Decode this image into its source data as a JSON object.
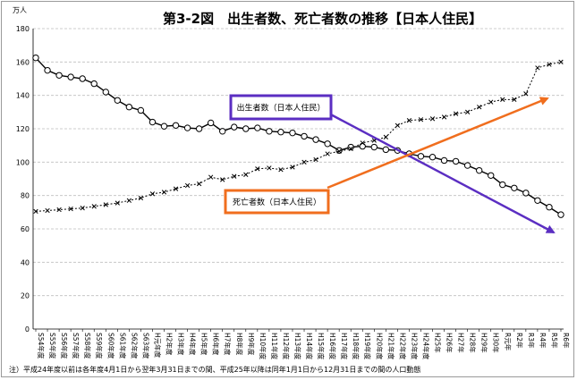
{
  "chart_data": {
    "type": "line",
    "title": "第3-2図　出生者数、死亡者数の推移【日本人住民】",
    "y_unit": "万人",
    "ylim": [
      0,
      180
    ],
    "yticks": [
      0,
      20,
      40,
      60,
      80,
      100,
      120,
      140,
      160,
      180
    ],
    "grid": true,
    "categories": [
      "S54年度",
      "S55年度",
      "S56年度",
      "S57年度",
      "S58年度",
      "S59年度",
      "S60年度",
      "S61年度",
      "S62年度",
      "S63年度",
      "H元年度",
      "H2年度",
      "H3年度",
      "H4年度",
      "H5年度",
      "H6年度",
      "H7年度",
      "H8年度",
      "H9年度",
      "H10年度",
      "H11年度",
      "H12年度",
      "H13年度",
      "H14年度",
      "H15年度",
      "H16年度",
      "H17年度",
      "H18年度",
      "H19年度",
      "H20年度",
      "H21年度",
      "H22年度",
      "H23年度",
      "H24年度",
      "H25年",
      "H26年",
      "H27年",
      "H28年",
      "H29年",
      "H30年",
      "R元年",
      "R2年",
      "R3年",
      "R4年",
      "R5年",
      "R6年"
    ],
    "series": [
      {
        "name": "出生者数（日本人住民）",
        "marker": "circle",
        "values": [
          162.5,
          155.0,
          152.0,
          151.0,
          150.0,
          147.0,
          142.0,
          137.0,
          133.0,
          131.0,
          124.0,
          121.5,
          122.0,
          120.5,
          120.0,
          123.5,
          118.5,
          121.0,
          120.0,
          120.5,
          118.5,
          118.0,
          117.5,
          115.5,
          113.5,
          111.0,
          107.0,
          109.0,
          109.5,
          109.0,
          107.5,
          107.0,
          105.0,
          103.5,
          103.0,
          101.0,
          100.5,
          98.0,
          95.0,
          92.0,
          86.5,
          84.5,
          81.5,
          77.0,
          73.0,
          68.5
        ]
      },
      {
        "name": "死亡者数（日本人住民）",
        "marker": "cross",
        "values": [
          70.5,
          71.0,
          71.5,
          72.0,
          72.5,
          73.5,
          74.5,
          75.5,
          77.0,
          78.5,
          81.0,
          82.0,
          84.0,
          86.0,
          87.0,
          91.0,
          89.5,
          91.5,
          92.5,
          96.0,
          96.5,
          95.5,
          97.0,
          100.0,
          101.5,
          105.0,
          106.5,
          108.0,
          111.5,
          113.0,
          115.0,
          122.0,
          125.0,
          125.5,
          126.0,
          127.0,
          129.0,
          130.0,
          133.0,
          136.0,
          137.5,
          137.5,
          141.0,
          156.5,
          158.5,
          160.0
        ]
      }
    ],
    "annotations": {
      "birth_label": "出生者数（日本人住民）",
      "death_label": "死亡者数（日本人住民）"
    },
    "colors": {
      "birth_arrow": "#5b2ec2",
      "death_arrow": "#f06e1e",
      "grid": "#bfbfbf"
    },
    "note": "注）平成24年度以前は各年度4月1日から翌年3月31日までの間、平成25年以降は同年1月1日から12月31日までの間の人口動態"
  }
}
